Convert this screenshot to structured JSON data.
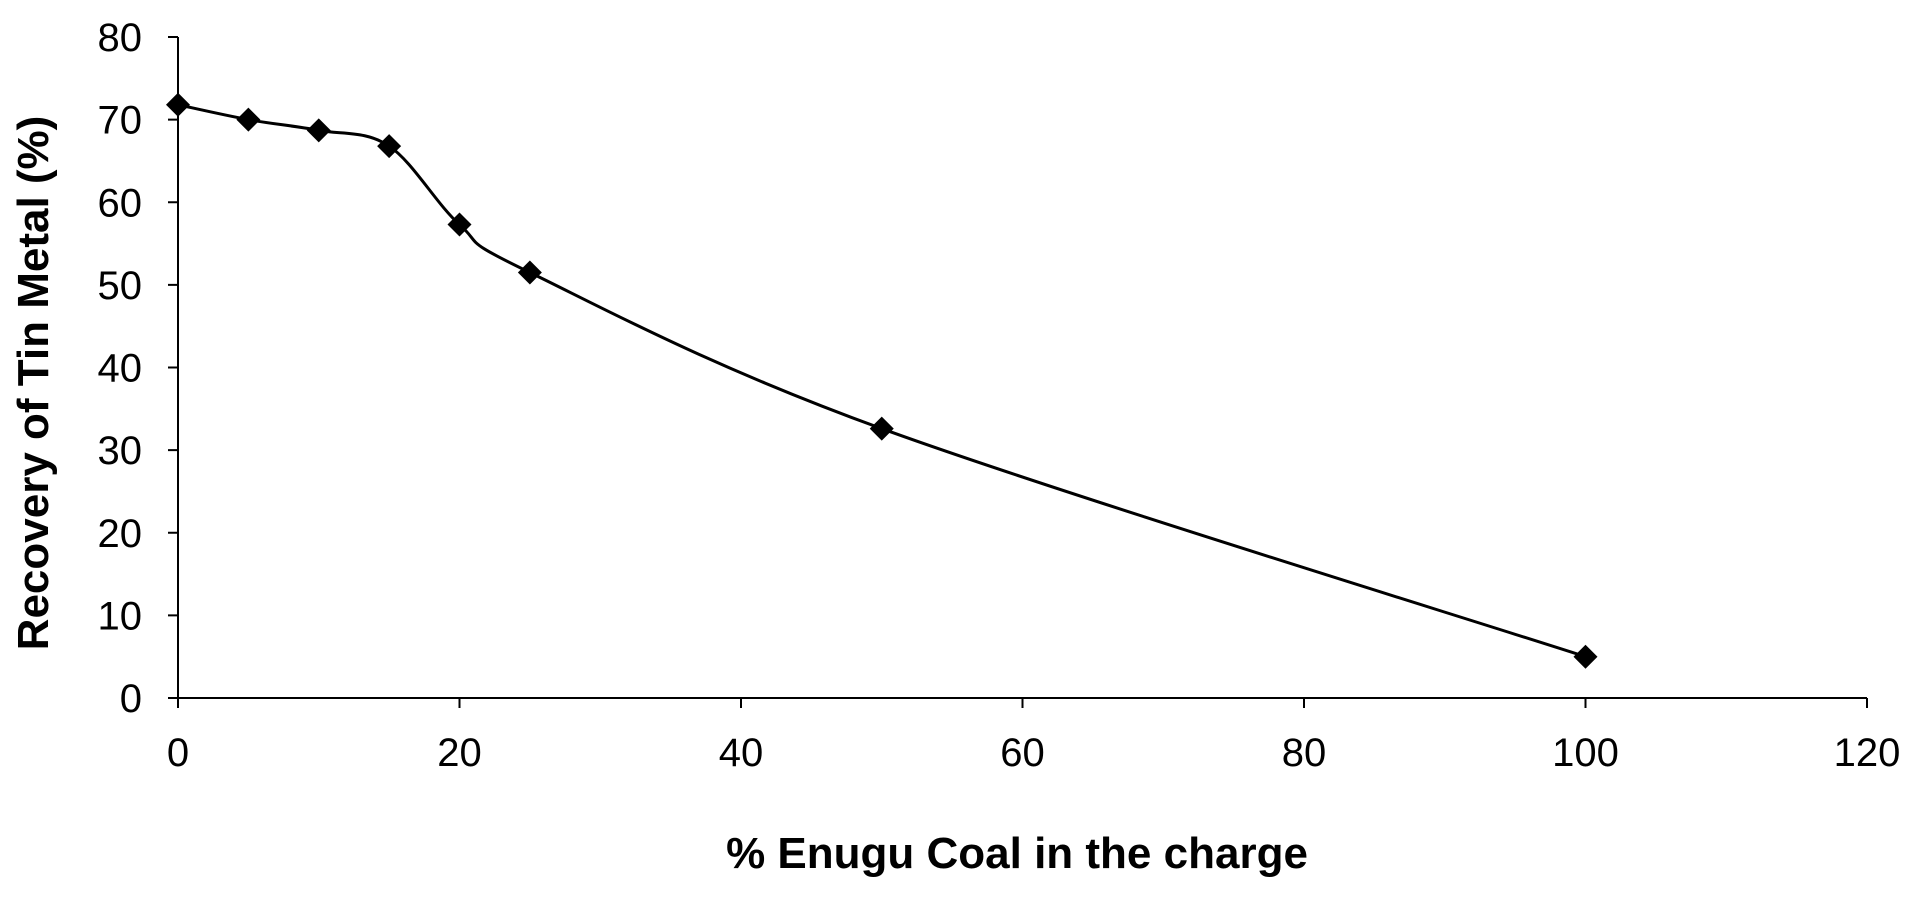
{
  "chart_data": {
    "type": "line",
    "title": "",
    "xlabel": "% Enugu Coal in the charge",
    "ylabel": "Recovery of Tin Metal (%)",
    "xlim": [
      0,
      120
    ],
    "ylim": [
      0,
      80
    ],
    "x_ticks": [
      0,
      20,
      40,
      60,
      80,
      100,
      120
    ],
    "y_ticks": [
      0,
      10,
      20,
      30,
      40,
      50,
      60,
      70,
      80
    ],
    "grid": false,
    "legend": "none",
    "smooth": true,
    "marker": "diamond",
    "colors": {
      "line": "#000000",
      "marker": "#000000",
      "axis": "#000000",
      "background": "#ffffff"
    },
    "series": [
      {
        "x": [
          0,
          5,
          10,
          15,
          20,
          25,
          50,
          100
        ],
        "y": [
          71.8,
          70.0,
          68.7,
          66.8,
          57.3,
          51.5,
          32.6,
          5.0
        ]
      }
    ]
  }
}
